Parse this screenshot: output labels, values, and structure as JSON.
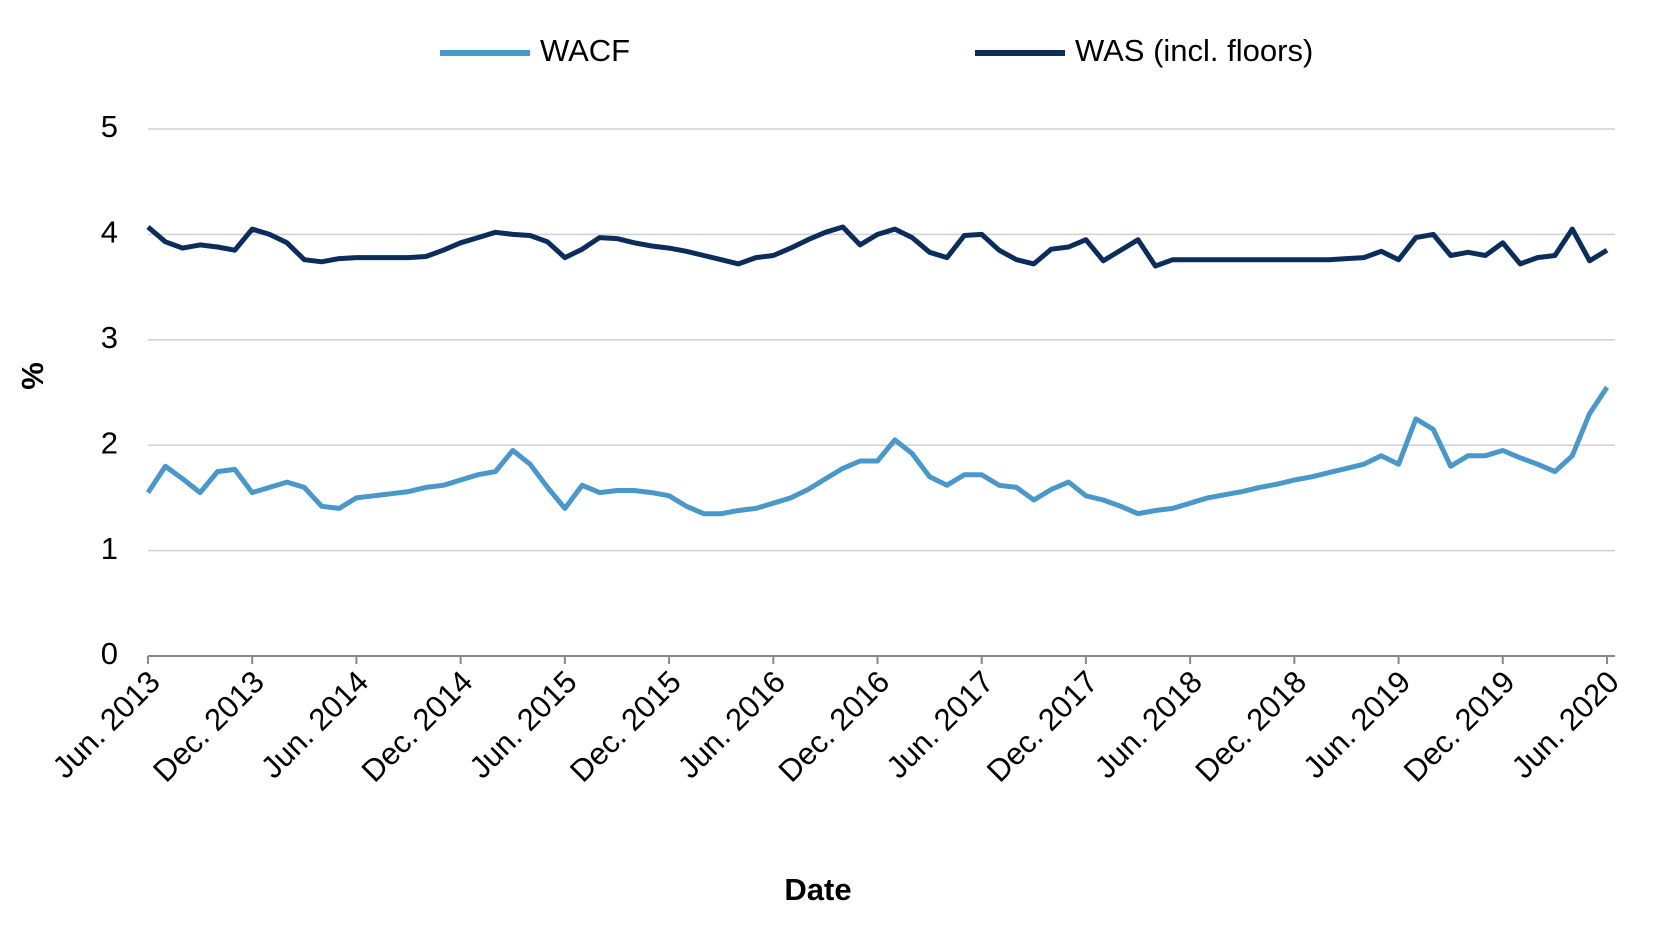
{
  "chart_data": {
    "type": "line",
    "x_label": "Date",
    "y_label": "%",
    "x": [
      "2013-06",
      "2013-07",
      "2013-08",
      "2013-09",
      "2013-10",
      "2013-11",
      "2013-12",
      "2014-01",
      "2014-02",
      "2014-03",
      "2014-04",
      "2014-05",
      "2014-06",
      "2014-07",
      "2014-08",
      "2014-09",
      "2014-10",
      "2014-11",
      "2014-12",
      "2015-01",
      "2015-02",
      "2015-03",
      "2015-04",
      "2015-05",
      "2015-06",
      "2015-07",
      "2015-08",
      "2015-09",
      "2015-10",
      "2015-11",
      "2015-12",
      "2016-01",
      "2016-02",
      "2016-03",
      "2016-04",
      "2016-05",
      "2016-06",
      "2016-07",
      "2016-08",
      "2016-09",
      "2016-10",
      "2016-11",
      "2016-12",
      "2017-01",
      "2017-02",
      "2017-03",
      "2017-04",
      "2017-05",
      "2017-06",
      "2017-07",
      "2017-08",
      "2017-09",
      "2017-10",
      "2017-11",
      "2017-12",
      "2018-01",
      "2018-02",
      "2018-03",
      "2018-04",
      "2018-05",
      "2018-06",
      "2018-07",
      "2018-08",
      "2018-09",
      "2018-10",
      "2018-11",
      "2018-12",
      "2019-01",
      "2019-02",
      "2019-03",
      "2019-04",
      "2019-05",
      "2019-06",
      "2019-07",
      "2019-08",
      "2019-09",
      "2019-10",
      "2019-11",
      "2019-12",
      "2020-01",
      "2020-02",
      "2020-03",
      "2020-04",
      "2020-05",
      "2020-06"
    ],
    "series": [
      {
        "name": "WACF",
        "color": "#4a97c9",
        "values": [
          1.55,
          1.8,
          1.68,
          1.55,
          1.75,
          1.77,
          1.55,
          1.6,
          1.65,
          1.6,
          1.42,
          1.4,
          1.5,
          1.52,
          1.54,
          1.56,
          1.6,
          1.62,
          1.67,
          1.72,
          1.75,
          1.95,
          1.82,
          1.6,
          1.4,
          1.62,
          1.55,
          1.57,
          1.57,
          1.55,
          1.52,
          1.42,
          1.35,
          1.35,
          1.38,
          1.4,
          1.45,
          1.5,
          1.58,
          1.68,
          1.78,
          1.85,
          1.85,
          2.05,
          1.92,
          1.7,
          1.62,
          1.72,
          1.72,
          1.62,
          1.6,
          1.48,
          1.58,
          1.65,
          1.52,
          1.48,
          1.42,
          1.35,
          1.38,
          1.4,
          1.45,
          1.5,
          1.53,
          1.56,
          1.6,
          1.63,
          1.67,
          1.7,
          1.74,
          1.78,
          1.82,
          1.9,
          1.82,
          2.25,
          2.15,
          1.8,
          1.9,
          1.9,
          1.95,
          1.88,
          1.82,
          1.75,
          1.9,
          2.3,
          2.55
        ]
      },
      {
        "name": "WAS (incl. floors)",
        "color": "#0b2d5b",
        "values": [
          4.07,
          3.93,
          3.87,
          3.9,
          3.88,
          3.85,
          4.05,
          4.0,
          3.92,
          3.76,
          3.74,
          3.77,
          3.78,
          3.78,
          3.78,
          3.78,
          3.79,
          3.85,
          3.92,
          3.97,
          4.02,
          4.0,
          3.99,
          3.93,
          3.78,
          3.86,
          3.97,
          3.96,
          3.92,
          3.89,
          3.87,
          3.84,
          3.8,
          3.76,
          3.72,
          3.78,
          3.8,
          3.87,
          3.95,
          4.02,
          4.07,
          3.9,
          4.0,
          4.05,
          3.97,
          3.83,
          3.78,
          3.99,
          4.0,
          3.85,
          3.76,
          3.72,
          3.86,
          3.88,
          3.95,
          3.75,
          3.85,
          3.95,
          3.7,
          3.76,
          3.76,
          3.76,
          3.76,
          3.76,
          3.76,
          3.76,
          3.76,
          3.76,
          3.76,
          3.77,
          3.78,
          3.84,
          3.76,
          3.97,
          4.0,
          3.8,
          3.83,
          3.8,
          3.92,
          3.72,
          3.78,
          3.8,
          4.05,
          3.75,
          3.85
        ]
      }
    ],
    "xlim": [
      "2013-06",
      "2020-06"
    ],
    "xticks": [
      {
        "value": "2013-06",
        "label": "Jun. 2013"
      },
      {
        "value": "2013-12",
        "label": "Dec. 2013"
      },
      {
        "value": "2014-06",
        "label": "Jun. 2014"
      },
      {
        "value": "2014-12",
        "label": "Dec. 2014"
      },
      {
        "value": "2015-06",
        "label": "Jun. 2015"
      },
      {
        "value": "2015-12",
        "label": "Dec. 2015"
      },
      {
        "value": "2016-06",
        "label": "Jun. 2016"
      },
      {
        "value": "2016-12",
        "label": "Dec. 2016"
      },
      {
        "value": "2017-06",
        "label": "Jun. 2017"
      },
      {
        "value": "2017-12",
        "label": "Dec. 2017"
      },
      {
        "value": "2018-06",
        "label": "Jun. 2018"
      },
      {
        "value": "2018-12",
        "label": "Dec. 2018"
      },
      {
        "value": "2019-06",
        "label": "Jun. 2019"
      },
      {
        "value": "2019-12",
        "label": "Dec. 2019"
      },
      {
        "value": "2020-06",
        "label": "Jun. 2020"
      }
    ],
    "ylim": [
      0,
      5
    ],
    "yticks": [
      0,
      1,
      2,
      3,
      4,
      5
    ],
    "grid": true,
    "legend": "top"
  }
}
